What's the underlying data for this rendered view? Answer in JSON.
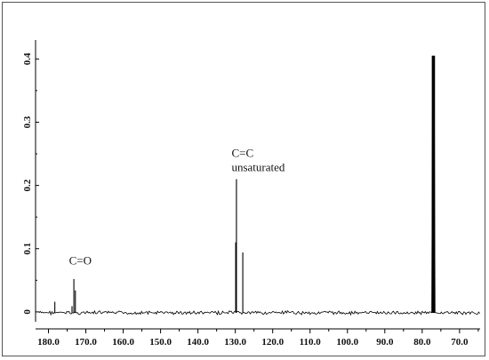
{
  "chart_data": {
    "type": "line",
    "title": "",
    "xlabel": "",
    "ylabel": "",
    "x_reversed": true,
    "xlim": [
      182.5,
      64.5
    ],
    "ylim": [
      -0.01,
      0.43
    ],
    "x_ticks": [
      180.0,
      170.0,
      160.0,
      150.0,
      140.0,
      130.0,
      120.0,
      110.0,
      100.0,
      90.0,
      80.0,
      70.0
    ],
    "x_tick_labels": [
      "180.0",
      "170.0",
      "160.0",
      "150.0",
      "140.0",
      "130.0",
      "120.0",
      "110.0",
      "100.0",
      "90.0",
      "80.0",
      "70.0"
    ],
    "y_ticks": [
      0,
      0.1,
      0.2,
      0.3,
      0.4
    ],
    "y_tick_labels": [
      "0",
      "0.1",
      "0.2",
      "0.3",
      "0.4"
    ],
    "grid": false,
    "line_color": "#000000",
    "peaks": [
      {
        "x": 178.3,
        "y": 0.016
      },
      {
        "x": 173.7,
        "y": 0.009
      },
      {
        "x": 173.2,
        "y": 0.052
      },
      {
        "x": 172.8,
        "y": 0.034
      },
      {
        "x": 129.9,
        "y": 0.11
      },
      {
        "x": 129.7,
        "y": 0.21
      },
      {
        "x": 128.0,
        "y": 0.094
      },
      {
        "x": 77.3,
        "y": 0.405
      },
      {
        "x": 77.0,
        "y": 0.405
      },
      {
        "x": 76.7,
        "y": 0.405
      }
    ],
    "annotations": [
      {
        "text": "C=O",
        "x": 174.5,
        "y": 0.075
      },
      {
        "text": "C=C",
        "x": 131.0,
        "y": 0.245
      },
      {
        "text": "unsaturated",
        "x": 131.0,
        "y": 0.223
      }
    ]
  }
}
